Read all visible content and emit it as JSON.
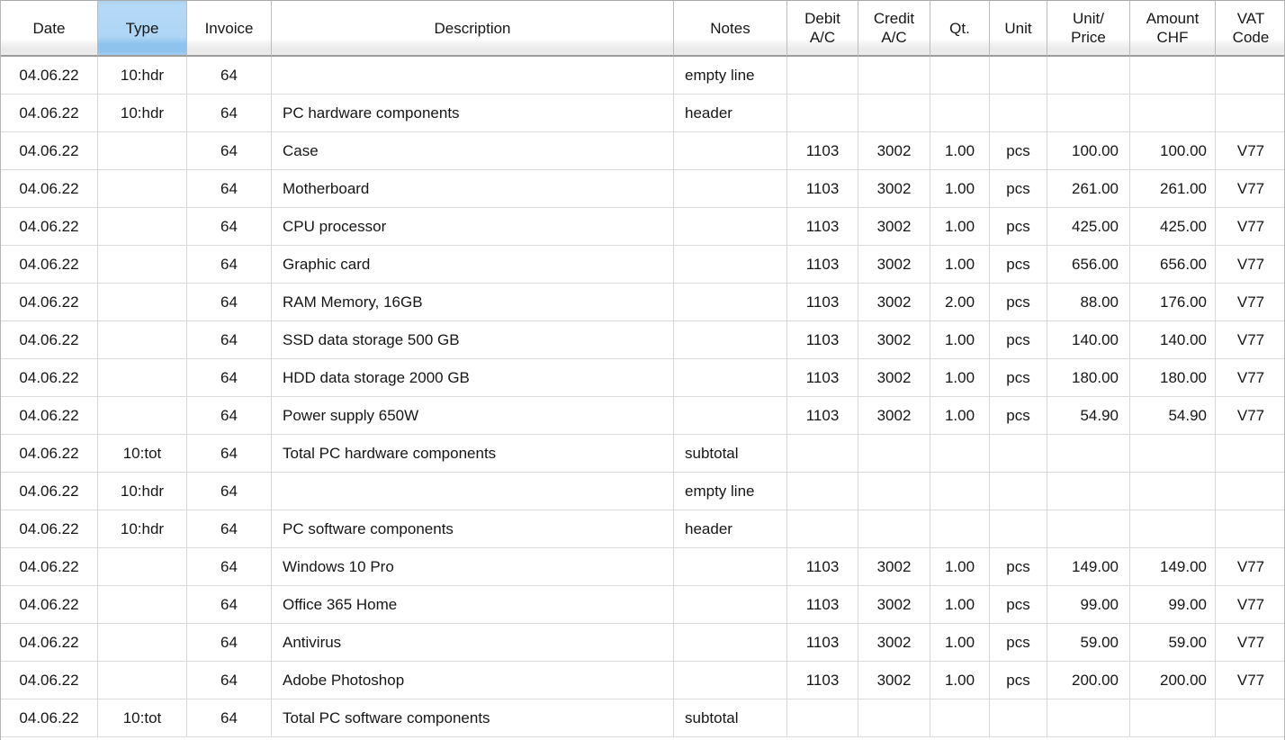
{
  "app": {
    "view_name": "transactions-table",
    "selected_column": "Type"
  },
  "colors": {
    "selected_header_blue": "#aed5f5",
    "selected_header_blue_deep": "#8ec3ee",
    "grid_line": "#d7d7d7",
    "header_border": "#9c9c9c",
    "text": "#161616"
  },
  "table": {
    "columns": [
      {
        "key": "date",
        "label": "Date",
        "lines": [
          "Date"
        ],
        "selected": false
      },
      {
        "key": "type",
        "label": "Type",
        "lines": [
          "Type"
        ],
        "selected": true
      },
      {
        "key": "invoice",
        "label": "Invoice",
        "lines": [
          "Invoice"
        ],
        "selected": false
      },
      {
        "key": "description",
        "label": "Description",
        "lines": [
          "Description"
        ],
        "selected": false
      },
      {
        "key": "notes",
        "label": "Notes",
        "lines": [
          "Notes"
        ],
        "selected": false
      },
      {
        "key": "debit",
        "label": "Debit A/C",
        "lines": [
          "Debit",
          "A/C"
        ],
        "selected": false
      },
      {
        "key": "credit",
        "label": "Credit A/C",
        "lines": [
          "Credit",
          "A/C"
        ],
        "selected": false
      },
      {
        "key": "qty",
        "label": "Qt.",
        "lines": [
          "Qt."
        ],
        "selected": false
      },
      {
        "key": "unit",
        "label": "Unit",
        "lines": [
          "Unit"
        ],
        "selected": false
      },
      {
        "key": "unit_price",
        "label": "Unit/Price",
        "lines": [
          "Unit/",
          "Price"
        ],
        "selected": false
      },
      {
        "key": "amount",
        "label": "Amount CHF",
        "lines": [
          "Amount",
          "CHF"
        ],
        "selected": false
      },
      {
        "key": "vat",
        "label": "VAT Code",
        "lines": [
          "VAT",
          "Code"
        ],
        "selected": false
      }
    ],
    "rows": [
      [
        "04.06.22",
        "10:hdr",
        "64",
        "",
        "empty line",
        "",
        "",
        "",
        "",
        "",
        "",
        ""
      ],
      [
        "04.06.22",
        "10:hdr",
        "64",
        "PC hardware components",
        "header",
        "",
        "",
        "",
        "",
        "",
        "",
        ""
      ],
      [
        "04.06.22",
        "",
        "64",
        "Case",
        "",
        "1103",
        "3002",
        "1.00",
        "pcs",
        "100.00",
        "100.00",
        "V77"
      ],
      [
        "04.06.22",
        "",
        "64",
        "Motherboard",
        "",
        "1103",
        "3002",
        "1.00",
        "pcs",
        "261.00",
        "261.00",
        "V77"
      ],
      [
        "04.06.22",
        "",
        "64",
        "CPU processor",
        "",
        "1103",
        "3002",
        "1.00",
        "pcs",
        "425.00",
        "425.00",
        "V77"
      ],
      [
        "04.06.22",
        "",
        "64",
        "Graphic card",
        "",
        "1103",
        "3002",
        "1.00",
        "pcs",
        "656.00",
        "656.00",
        "V77"
      ],
      [
        "04.06.22",
        "",
        "64",
        "RAM Memory, 16GB",
        "",
        "1103",
        "3002",
        "2.00",
        "pcs",
        "88.00",
        "176.00",
        "V77"
      ],
      [
        "04.06.22",
        "",
        "64",
        "SSD data storage 500 GB",
        "",
        "1103",
        "3002",
        "1.00",
        "pcs",
        "140.00",
        "140.00",
        "V77"
      ],
      [
        "04.06.22",
        "",
        "64",
        "HDD data storage 2000 GB",
        "",
        "1103",
        "3002",
        "1.00",
        "pcs",
        "180.00",
        "180.00",
        "V77"
      ],
      [
        "04.06.22",
        "",
        "64",
        "Power supply 650W",
        "",
        "1103",
        "3002",
        "1.00",
        "pcs",
        "54.90",
        "54.90",
        "V77"
      ],
      [
        "04.06.22",
        "10:tot",
        "64",
        "Total PC hardware components",
        "subtotal",
        "",
        "",
        "",
        "",
        "",
        "",
        ""
      ],
      [
        "04.06.22",
        "10:hdr",
        "64",
        "",
        "empty line",
        "",
        "",
        "",
        "",
        "",
        "",
        ""
      ],
      [
        "04.06.22",
        "10:hdr",
        "64",
        "PC software components",
        "header",
        "",
        "",
        "",
        "",
        "",
        "",
        ""
      ],
      [
        "04.06.22",
        "",
        "64",
        "Windows 10 Pro",
        "",
        "1103",
        "3002",
        "1.00",
        "pcs",
        "149.00",
        "149.00",
        "V77"
      ],
      [
        "04.06.22",
        "",
        "64",
        "Office 365 Home",
        "",
        "1103",
        "3002",
        "1.00",
        "pcs",
        "99.00",
        "99.00",
        "V77"
      ],
      [
        "04.06.22",
        "",
        "64",
        "Antivirus",
        "",
        "1103",
        "3002",
        "1.00",
        "pcs",
        "59.00",
        "59.00",
        "V77"
      ],
      [
        "04.06.22",
        "",
        "64",
        "Adobe Photoshop",
        "",
        "1103",
        "3002",
        "1.00",
        "pcs",
        "200.00",
        "200.00",
        "V77"
      ],
      [
        "04.06.22",
        "10:tot",
        "64",
        "Total PC software components",
        "subtotal",
        "",
        "",
        "",
        "",
        "",
        "",
        ""
      ]
    ]
  }
}
